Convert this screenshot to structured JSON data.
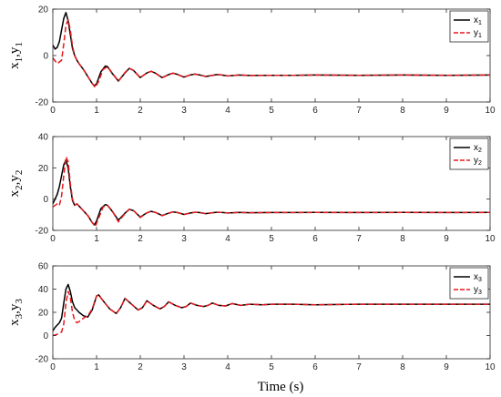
{
  "figure": {
    "xlabel": "Time (s)",
    "x_ticks": [
      0,
      1,
      2,
      3,
      4,
      5,
      6,
      7,
      8,
      9,
      10
    ],
    "colors": {
      "x": "#000000",
      "y": "#e8191d"
    }
  },
  "chart_data": [
    {
      "type": "line",
      "ylabel_main": "x",
      "ylabel_sub": "1",
      "ylabel_sep": ",y",
      "ylabel_sub2": "1",
      "xlim": [
        0,
        10
      ],
      "ylim": [
        -20,
        20
      ],
      "y_ticks": [
        -20,
        0,
        20
      ],
      "grid": false,
      "legend": "top-right",
      "series": [
        {
          "name": "x",
          "name_sub": "1",
          "style": "solid",
          "color": "#000000",
          "x": [
            0,
            0.05,
            0.1,
            0.15,
            0.2,
            0.25,
            0.3,
            0.35,
            0.4,
            0.45,
            0.5,
            0.55,
            0.6,
            0.7,
            0.8,
            0.9,
            0.95,
            1.0,
            1.1,
            1.2,
            1.25,
            1.35,
            1.5,
            1.65,
            1.75,
            1.85,
            2.0,
            2.15,
            2.25,
            2.35,
            2.5,
            2.65,
            2.75,
            2.85,
            3.0,
            3.15,
            3.25,
            3.35,
            3.5,
            3.65,
            3.75,
            3.85,
            4.0,
            4.25,
            4.5,
            5.0,
            5.5,
            6.0,
            7.0,
            8.0,
            9.0,
            10.0
          ],
          "y": [
            4.5,
            2.8,
            3.5,
            6,
            11,
            16,
            18.5,
            15,
            9,
            3,
            0,
            -2,
            -3.5,
            -6,
            -9,
            -12,
            -13,
            -12.2,
            -7,
            -4.5,
            -4.8,
            -7.5,
            -11,
            -7.5,
            -5.5,
            -6.5,
            -9.5,
            -7.5,
            -6.8,
            -7.6,
            -9.5,
            -8.2,
            -7.6,
            -8.1,
            -9.3,
            -8.3,
            -8,
            -8.3,
            -9,
            -8.5,
            -8.2,
            -8.3,
            -8.8,
            -8.4,
            -8.6,
            -8.5,
            -8.5,
            -8.4,
            -8.5,
            -8.4,
            -8.5,
            -8.4
          ]
        },
        {
          "name": "y",
          "name_sub": "1",
          "style": "dashed",
          "color": "#e8191d",
          "x": [
            0,
            0.1,
            0.2,
            0.25,
            0.3,
            0.35,
            0.4,
            0.45,
            0.5,
            0.55,
            0.6,
            0.7,
            0.8,
            0.9,
            0.97,
            1.05,
            1.15,
            1.25,
            1.35,
            1.5,
            1.65,
            1.75,
            1.85,
            2.0,
            2.15,
            2.25,
            2.35,
            2.5,
            2.65,
            2.75,
            2.85,
            3.0,
            3.15,
            3.25,
            3.35,
            3.5,
            3.65,
            3.75,
            3.85,
            4.0,
            4.25,
            4.5,
            5.0,
            5.5,
            6.0,
            7.0,
            8.0,
            9.0,
            10.0
          ],
          "y": [
            -1,
            -3.5,
            -2,
            5,
            13,
            15.5,
            11,
            4,
            0,
            -2,
            -3.5,
            -6,
            -9,
            -12,
            -13.8,
            -11,
            -6,
            -4.8,
            -7.3,
            -11,
            -7.3,
            -5.5,
            -6.4,
            -9.6,
            -7.4,
            -6.8,
            -7.7,
            -9.6,
            -8.1,
            -7.6,
            -8.2,
            -9.3,
            -8.3,
            -8,
            -8.3,
            -9,
            -8.5,
            -8.2,
            -8.3,
            -8.8,
            -8.4,
            -8.6,
            -8.5,
            -8.5,
            -8.4,
            -8.5,
            -8.4,
            -8.5,
            -8.4
          ]
        }
      ]
    },
    {
      "type": "line",
      "ylabel_main": "x",
      "ylabel_sub": "2",
      "ylabel_sep": ",y",
      "ylabel_sub2": "2",
      "xlim": [
        0,
        10
      ],
      "ylim": [
        -20,
        40
      ],
      "y_ticks": [
        -20,
        0,
        20,
        40
      ],
      "grid": false,
      "legend": "top-right",
      "series": [
        {
          "name": "x",
          "name_sub": "2",
          "style": "solid",
          "color": "#000000",
          "x": [
            0,
            0.1,
            0.15,
            0.2,
            0.25,
            0.3,
            0.35,
            0.4,
            0.45,
            0.5,
            0.55,
            0.6,
            0.7,
            0.8,
            0.9,
            0.95,
            1.0,
            1.1,
            1.2,
            1.25,
            1.35,
            1.5,
            1.65,
            1.75,
            1.85,
            2.0,
            2.15,
            2.25,
            2.35,
            2.5,
            2.65,
            2.75,
            2.85,
            3.0,
            3.15,
            3.25,
            3.35,
            3.5,
            3.65,
            3.75,
            3.85,
            4.0,
            4.25,
            4.5,
            5.0,
            5.5,
            6.0,
            7.0,
            8.0,
            9.0,
            10.0
          ],
          "y": [
            -3,
            3,
            8,
            15,
            22,
            25,
            20,
            8,
            -1,
            -4,
            -3,
            -4.5,
            -7.5,
            -10.5,
            -15,
            -16.5,
            -14,
            -6,
            -3.5,
            -4,
            -7.5,
            -13.5,
            -9,
            -6.5,
            -7.5,
            -11.5,
            -8.8,
            -7.8,
            -8.5,
            -10.5,
            -9,
            -8.2,
            -8.6,
            -9.8,
            -8.9,
            -8.4,
            -8.6,
            -9.3,
            -8.7,
            -8.4,
            -8.5,
            -8.9,
            -8.5,
            -8.7,
            -8.6,
            -8.6,
            -8.5,
            -8.6,
            -8.5,
            -8.6,
            -8.5
          ]
        },
        {
          "name": "y",
          "name_sub": "2",
          "style": "dashed",
          "color": "#e8191d",
          "x": [
            0,
            0.1,
            0.15,
            0.2,
            0.25,
            0.3,
            0.35,
            0.4,
            0.45,
            0.5,
            0.55,
            0.6,
            0.7,
            0.8,
            0.9,
            0.97,
            1.05,
            1.15,
            1.25,
            1.35,
            1.5,
            1.65,
            1.75,
            1.85,
            2.0,
            2.15,
            2.25,
            2.35,
            2.5,
            2.65,
            2.75,
            2.85,
            3.0,
            3.15,
            3.25,
            3.35,
            3.5,
            3.65,
            3.75,
            3.85,
            4.0,
            4.25,
            4.5,
            5.0,
            5.5,
            6.0,
            7.0,
            8.0,
            9.0,
            10.0
          ],
          "y": [
            -5,
            -3,
            -4,
            2,
            15,
            27,
            24,
            10,
            0,
            -4,
            -3,
            -4.5,
            -7.5,
            -10.5,
            -15,
            -17.5,
            -12,
            -5,
            -4,
            -7.2,
            -14.5,
            -9.2,
            -6.5,
            -7.4,
            -11.8,
            -8.8,
            -7.8,
            -8.6,
            -10.6,
            -9,
            -8.2,
            -8.6,
            -9.8,
            -8.9,
            -8.4,
            -8.6,
            -9.3,
            -8.7,
            -8.4,
            -8.5,
            -8.9,
            -8.5,
            -8.7,
            -8.6,
            -8.6,
            -8.5,
            -8.6,
            -8.5,
            -8.6,
            -8.5
          ]
        }
      ]
    },
    {
      "type": "line",
      "ylabel_main": "x",
      "ylabel_sub": "3",
      "ylabel_sep": ",y",
      "ylabel_sub2": "3",
      "xlim": [
        0,
        10
      ],
      "ylim": [
        -20,
        60
      ],
      "y_ticks": [
        -20,
        0,
        20,
        40,
        60
      ],
      "grid": false,
      "legend": "top-right",
      "series": [
        {
          "name": "x",
          "name_sub": "3",
          "style": "solid",
          "color": "#000000",
          "x": [
            0,
            0.05,
            0.1,
            0.15,
            0.2,
            0.25,
            0.3,
            0.35,
            0.4,
            0.45,
            0.5,
            0.55,
            0.6,
            0.7,
            0.8,
            0.9,
            1.0,
            1.05,
            1.15,
            1.3,
            1.45,
            1.55,
            1.65,
            1.8,
            1.95,
            2.05,
            2.15,
            2.3,
            2.45,
            2.55,
            2.65,
            2.8,
            2.95,
            3.05,
            3.15,
            3.3,
            3.45,
            3.55,
            3.65,
            3.8,
            3.95,
            4.1,
            4.3,
            4.5,
            4.8,
            5.0,
            5.5,
            6.0,
            7.0,
            8.0,
            9.0,
            10.0
          ],
          "y": [
            4,
            7,
            9,
            11,
            15,
            28,
            40,
            44,
            38,
            29,
            24,
            22,
            20,
            17,
            16,
            22,
            34,
            35,
            30,
            23,
            19,
            24,
            32,
            27,
            22,
            24,
            30,
            26,
            23,
            25,
            29,
            26,
            24,
            25,
            28,
            26,
            25,
            26,
            28,
            26,
            25.5,
            27.5,
            26,
            27,
            26.5,
            27,
            27,
            26.5,
            27,
            27,
            27,
            27
          ]
        },
        {
          "name": "y",
          "name_sub": "3",
          "style": "dashed",
          "color": "#e8191d",
          "x": [
            0,
            0.1,
            0.2,
            0.25,
            0.3,
            0.35,
            0.4,
            0.45,
            0.5,
            0.55,
            0.6,
            0.7,
            0.8,
            0.9,
            1.0,
            1.05,
            1.15,
            1.3,
            1.45,
            1.55,
            1.65,
            1.8,
            1.95,
            2.05,
            2.15,
            2.3,
            2.45,
            2.55,
            2.65,
            2.8,
            2.95,
            3.05,
            3.15,
            3.3,
            3.45,
            3.55,
            3.65,
            3.8,
            3.95,
            4.1,
            4.3,
            4.5,
            4.8,
            5.0,
            5.5,
            6.0,
            7.0,
            8.0,
            9.0,
            10.0
          ],
          "y": [
            0,
            1,
            3,
            10,
            28,
            38,
            33,
            20,
            13,
            11,
            12,
            15,
            17,
            23,
            34,
            35,
            30,
            23,
            19,
            24,
            32,
            27,
            22,
            24,
            30,
            26,
            23,
            25,
            29,
            26,
            24,
            25,
            28,
            26,
            25,
            26,
            28,
            26,
            25.5,
            27.5,
            26,
            27,
            26.5,
            27,
            27,
            26.5,
            27,
            27,
            27,
            27
          ]
        }
      ]
    }
  ]
}
